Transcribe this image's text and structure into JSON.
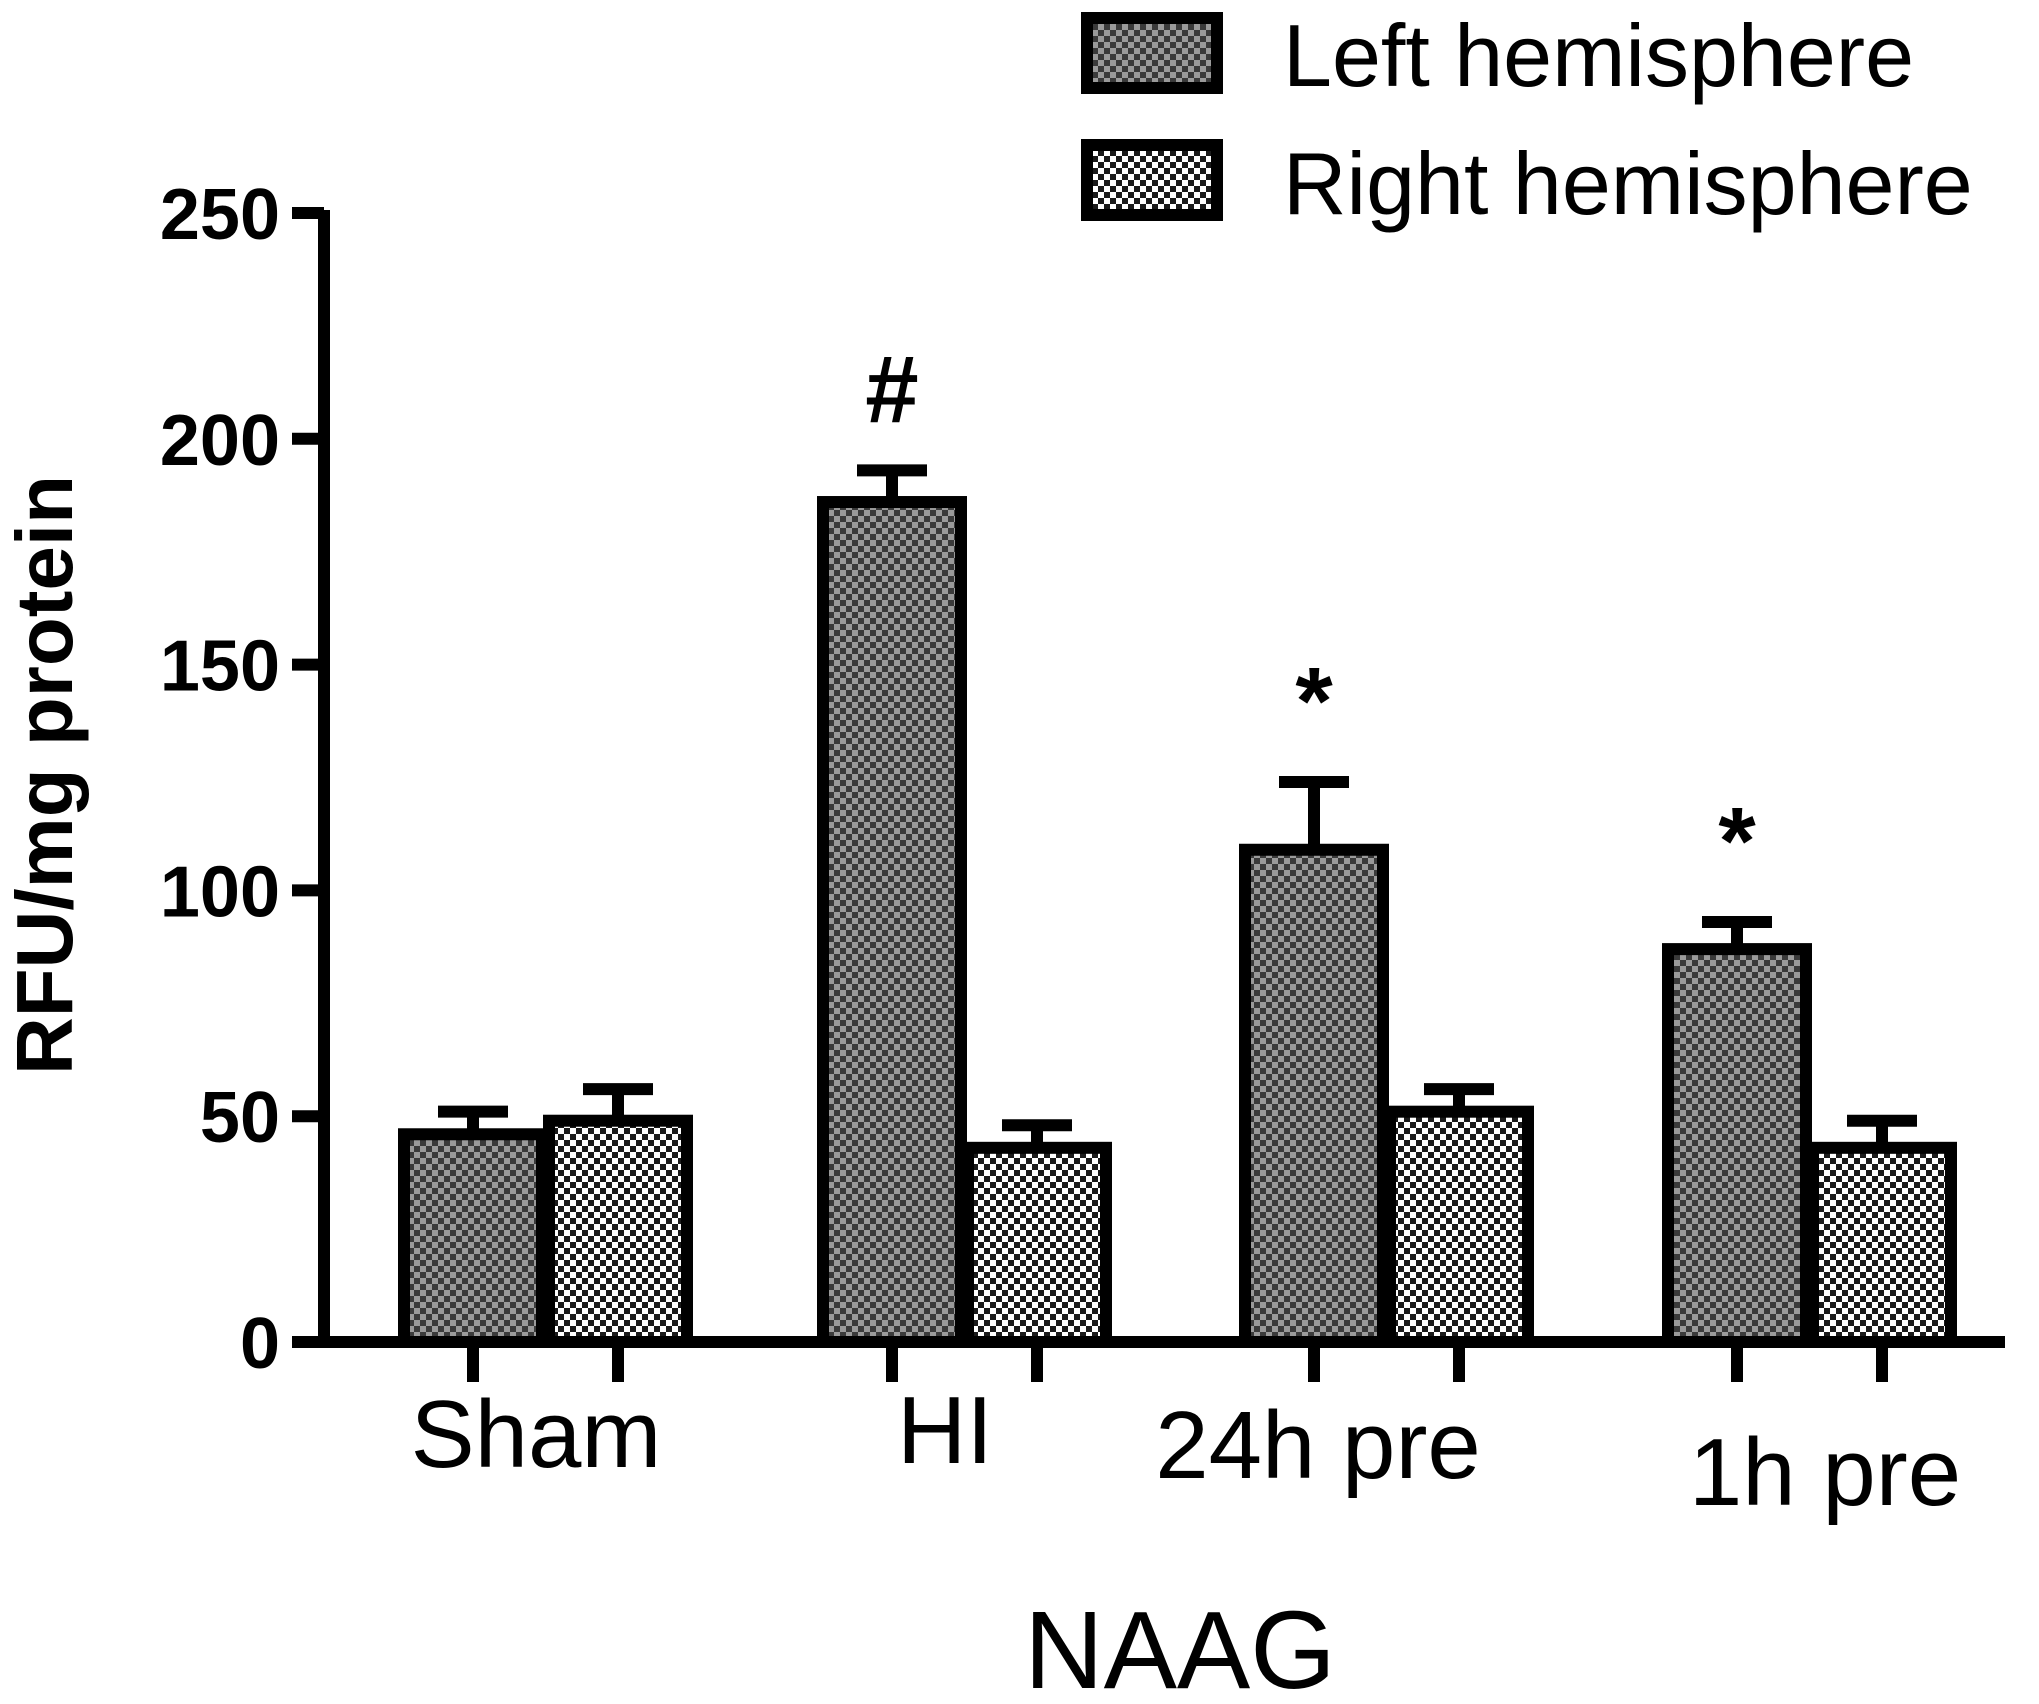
{
  "chart_data": {
    "type": "bar",
    "categories": [
      "Sham",
      "HI",
      "24h pre",
      "1h pre"
    ],
    "series": [
      {
        "name": "Left hemisphere",
        "values": [
          46,
          186,
          109,
          87
        ],
        "errors": [
          5,
          7,
          15,
          6
        ],
        "pattern": "dark-checker"
      },
      {
        "name": "Right hemisphere",
        "values": [
          49,
          43,
          51,
          43
        ],
        "errors": [
          7,
          5,
          5,
          6
        ],
        "pattern": "light-checker"
      }
    ],
    "annotations": [
      {
        "category": "HI",
        "series": "Left hemisphere",
        "text": "#"
      },
      {
        "category": "24h pre",
        "series": "Left hemisphere",
        "text": "*"
      },
      {
        "category": "1h pre",
        "series": "Left hemisphere",
        "text": "*"
      }
    ],
    "xlabel": "NAAG",
    "ylabel": "RFU/mg protein",
    "ylim": [
      0,
      250
    ],
    "yticks": [
      0,
      50,
      100,
      150,
      200,
      250
    ],
    "legend_position": "top-right",
    "grid": false
  }
}
